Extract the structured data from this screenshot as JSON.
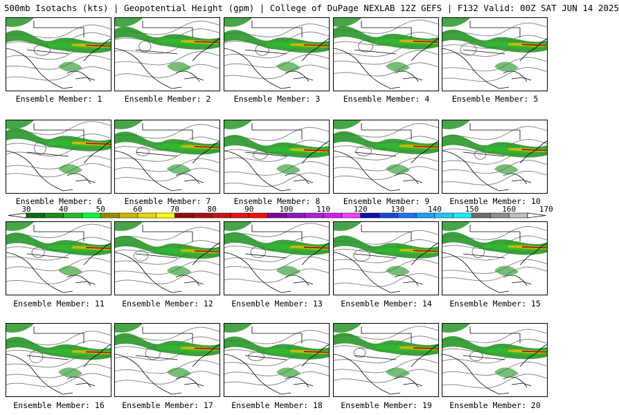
{
  "header": {
    "title": "500mb Isotachs (kts) | Geopotential Height (gpm) | College of DuPage NEXLAB   12Z GEFS | F132 Valid: 00Z SAT JUN 14 2025"
  },
  "panels": [
    {
      "label": "Ensemble Member: 1"
    },
    {
      "label": "Ensemble Member: 2"
    },
    {
      "label": "Ensemble Member: 3"
    },
    {
      "label": "Ensemble Member: 4"
    },
    {
      "label": "Ensemble Member: 5"
    },
    {
      "label": "Ensemble Member: 6"
    },
    {
      "label": "Ensemble Member: 7"
    },
    {
      "label": "Ensemble Member: 8"
    },
    {
      "label": "Ensemble Member: 9"
    },
    {
      "label": "Ensemble Member: 10"
    },
    {
      "label": "Ensemble Member: 11"
    },
    {
      "label": "Ensemble Member: 12"
    },
    {
      "label": "Ensemble Member: 13"
    },
    {
      "label": "Ensemble Member: 14"
    },
    {
      "label": "Ensemble Member: 15"
    },
    {
      "label": "Ensemble Member: 16"
    },
    {
      "label": "Ensemble Member: 17"
    },
    {
      "label": "Ensemble Member: 18"
    },
    {
      "label": "Ensemble Member: 19"
    },
    {
      "label": "Ensemble Member: 20"
    }
  ],
  "colorbar": {
    "colors": [
      "#0b6b0b",
      "#1c8f1c",
      "#2fb82f",
      "#00ff3c",
      "#9a8a00",
      "#c9b800",
      "#e6d800",
      "#ffff00",
      "#8f0f0f",
      "#a81212",
      "#c81414",
      "#e01818",
      "#ff0a0a",
      "#7a0a9a",
      "#9418c0",
      "#b020d8",
      "#d020f0",
      "#f040ff",
      "#1010a8",
      "#1848d8",
      "#1c74f0",
      "#1ca0ff",
      "#20c8ff",
      "#1ceeff",
      "#6e6e6e",
      "#8e8e8e",
      "#bebebe"
    ],
    "ticks": [
      "30",
      "40",
      "50",
      "60",
      "70",
      "80",
      "90",
      "100",
      "110",
      "120",
      "130",
      "140",
      "150",
      "160",
      "170"
    ]
  }
}
